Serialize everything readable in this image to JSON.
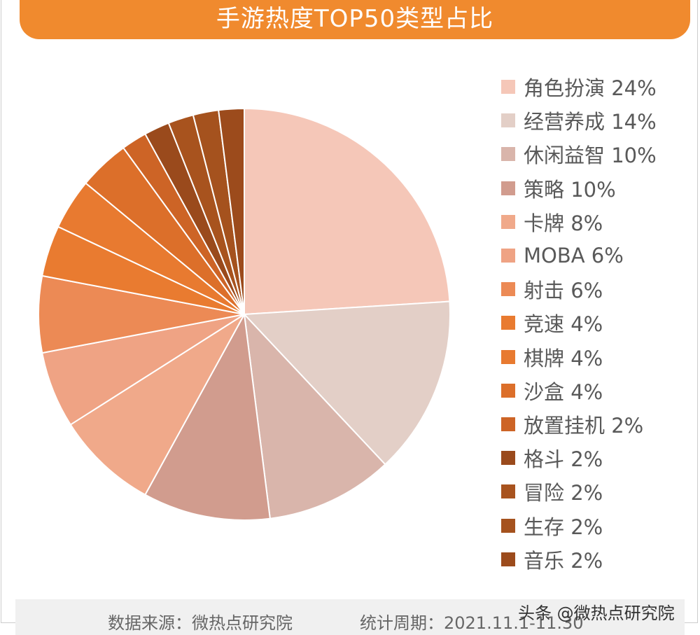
{
  "chart_data": {
    "type": "pie",
    "title": "手游热度TOP50类型占比",
    "legend_position": "right",
    "slices": [
      {
        "label": "角色扮演",
        "value": 24,
        "color": "#F5C7B8"
      },
      {
        "label": "经营养成",
        "value": 14,
        "color": "#E3CFC7"
      },
      {
        "label": "休闲益智",
        "value": 10,
        "color": "#D9B5AB"
      },
      {
        "label": "策略",
        "value": 10,
        "color": "#D19C8E"
      },
      {
        "label": "卡牌",
        "value": 8,
        "color": "#F0A98A"
      },
      {
        "label": "MOBA",
        "value": 6,
        "color": "#EFA384"
      },
      {
        "label": "射击",
        "value": 6,
        "color": "#EC8A55"
      },
      {
        "label": "竞速",
        "value": 4,
        "color": "#E97B30"
      },
      {
        "label": "棋牌",
        "value": 4,
        "color": "#E87A30"
      },
      {
        "label": "沙盒",
        "value": 4,
        "color": "#DC6F2A"
      },
      {
        "label": "放置挂机",
        "value": 2,
        "color": "#CD6426"
      },
      {
        "label": "格斗",
        "value": 2,
        "color": "#9A4A1C"
      },
      {
        "label": "冒险",
        "value": 2,
        "color": "#A8531E"
      },
      {
        "label": "生存",
        "value": 2,
        "color": "#A5521E"
      },
      {
        "label": "音乐",
        "value": 2,
        "color": "#9C4B1C"
      }
    ]
  },
  "footer": {
    "source": "数据来源：微热点研究院",
    "period": "统计周期：2021.11.1-11.30",
    "watermark": "头条 @微热点研究院"
  }
}
